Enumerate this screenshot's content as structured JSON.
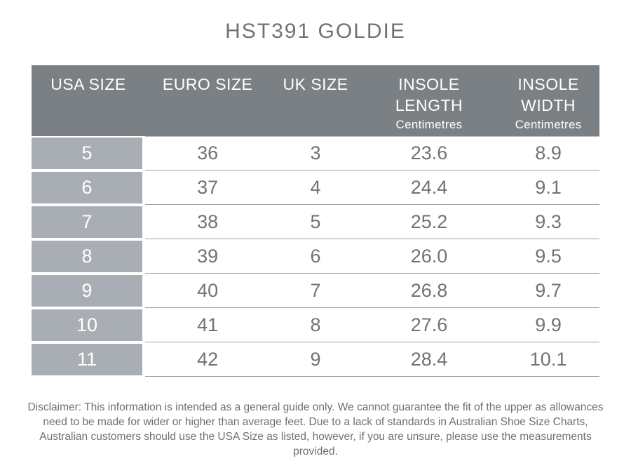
{
  "title": "HST391 GOLDIE",
  "table": {
    "columns": [
      {
        "label": "USA SIZE"
      },
      {
        "label": "EURO SIZE"
      },
      {
        "label": "UK SIZE"
      },
      {
        "label": "INSOLE",
        "label2": "LENGTH",
        "sub": "Centimetres"
      },
      {
        "label": "INSOLE",
        "label2": "WIDTH",
        "sub": "Centimetres"
      }
    ],
    "rows": [
      [
        "5",
        "36",
        "3",
        "23.6",
        "8.9"
      ],
      [
        "6",
        "37",
        "4",
        "24.4",
        "9.1"
      ],
      [
        "7",
        "38",
        "5",
        "25.2",
        "9.3"
      ],
      [
        "8",
        "39",
        "6",
        "26.0",
        "9.5"
      ],
      [
        "9",
        "40",
        "7",
        "26.8",
        "9.7"
      ],
      [
        "10",
        "41",
        "8",
        "27.6",
        "9.9"
      ],
      [
        "11",
        "42",
        "9",
        "28.4",
        "10.1"
      ]
    ]
  },
  "disclaimer": "Disclaimer: This information is intended as a general guide only. We cannot guarantee the fit of the upper as allowances need to be made for wider or higher than average feet. Due to a lack of standards in Australian Shoe Size Charts, Australian customers should use the USA Size as listed, however, if you are unsure, please use the measurements provided.",
  "colors": {
    "header_bg": "#7b8085",
    "row_label_bg": "#a9aeb4",
    "text_gray": "#6e7377",
    "divider_line": "#9ba0a5"
  }
}
